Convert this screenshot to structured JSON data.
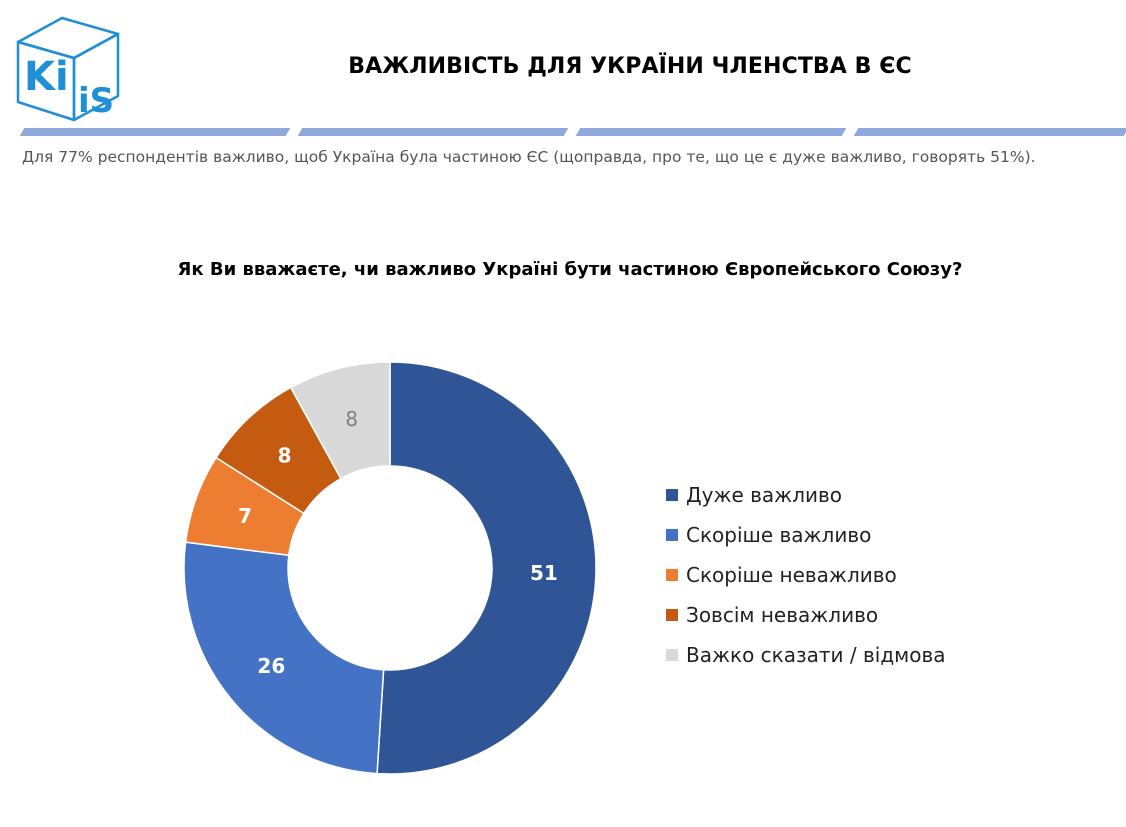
{
  "header": {
    "logo_text": "KiiS",
    "title": "ВАЖЛИВІСТЬ ДЛЯ УКРАЇНИ ЧЛЕНСТВА В ЄС"
  },
  "lead_text": "Для 77% респондентів важливо, щоб Україна була частиною ЄС (щоправда, про те, що це є дуже важливо, говорять 51%).",
  "colors": {
    "brand_blue": "#1f8fd6",
    "stripe": "#8fa9dc"
  },
  "chart_data": {
    "type": "pie",
    "variant": "donut",
    "title": "Як Ви вважаєте, чи важливо Україні бути частиною Європейського Союзу?",
    "categories": [
      "Дуже важливо",
      "Скоріше важливо",
      "Скоріше неважливо",
      "Зовсім неважливо",
      "Важко сказати / відмова"
    ],
    "values": [
      51,
      26,
      7,
      8,
      8
    ],
    "colors": [
      "#2f5597",
      "#4472c4",
      "#ed7d31",
      "#c55a11",
      "#d9d9d9"
    ],
    "label_colors": [
      "#ffffff",
      "#ffffff",
      "#ffffff",
      "#ffffff",
      "#808080"
    ],
    "legend_position": "right"
  }
}
